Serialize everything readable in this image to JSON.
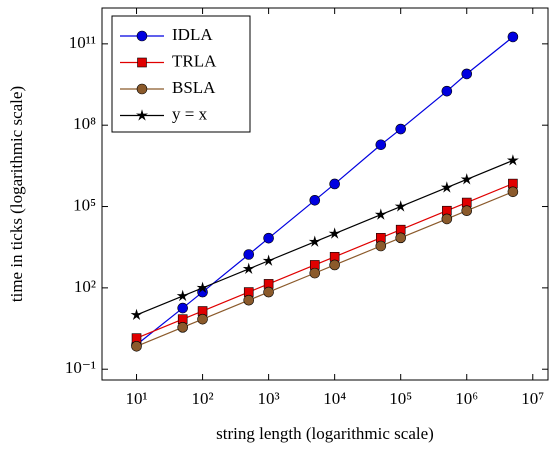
{
  "chart_data": {
    "type": "line",
    "x_label": "string length (logarithmic scale)",
    "y_label": "time in ticks (logarithmic scale)",
    "x": [
      10,
      50,
      100,
      500,
      1000,
      5000,
      10000,
      50000,
      100000,
      500000,
      1000000,
      5000000
    ],
    "series": [
      {
        "name": "IDLA",
        "color": "#0000e0",
        "marker": "circle",
        "values": [
          0.8,
          18,
          70,
          1700,
          6800,
          170000,
          680000,
          19000000,
          72000000,
          1800000000,
          7800000000,
          180000000000
        ]
      },
      {
        "name": "TRLA",
        "color": "#e00000",
        "marker": "square",
        "values": [
          1.4,
          7,
          14,
          70,
          140,
          700,
          1400,
          7000,
          14000,
          70000,
          140000,
          700000
        ]
      },
      {
        "name": "BSLA",
        "color": "#8b5a2b",
        "marker": "circle",
        "values": [
          0.7,
          3.5,
          7,
          35,
          70,
          350,
          700,
          3500,
          7000,
          35000,
          70000,
          350000
        ]
      },
      {
        "name": "y = x",
        "color": "#000000",
        "marker": "star",
        "values": [
          10,
          50,
          100,
          500,
          1000,
          5000,
          10000,
          50000,
          100000,
          500000,
          1000000,
          5000000
        ]
      }
    ],
    "xlog": true,
    "ylog": true,
    "xlim": [
      3,
      17000000
    ],
    "ylim": [
      0.04,
      2100000000000
    ],
    "xticks": [
      {
        "value": 10,
        "label": "10¹"
      },
      {
        "value": 100,
        "label": "10²"
      },
      {
        "value": 1000,
        "label": "10³"
      },
      {
        "value": 10000,
        "label": "10⁴"
      },
      {
        "value": 100000,
        "label": "10⁵"
      },
      {
        "value": 1000000,
        "label": "10⁶"
      },
      {
        "value": 10000000,
        "label": "10⁷"
      }
    ],
    "yticks": [
      {
        "value": 0.1,
        "label": "10⁻¹"
      },
      {
        "value": 100,
        "label": "10²"
      },
      {
        "value": 100000,
        "label": "10⁵"
      },
      {
        "value": 100000000,
        "label": "10⁸"
      },
      {
        "value": 100000000000,
        "label": "10¹¹"
      }
    ],
    "legend": "top-left"
  }
}
